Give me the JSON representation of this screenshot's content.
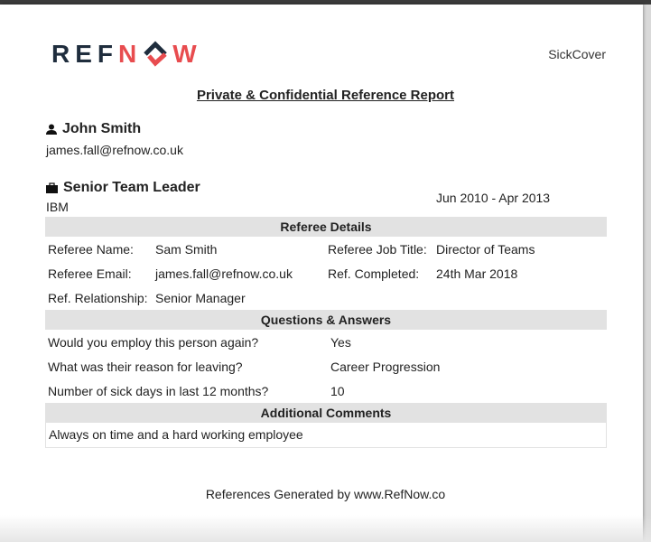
{
  "logo": {
    "text": "REFNOW",
    "colors": {
      "dark": "#1f2d3d",
      "red": "#e84c4f"
    }
  },
  "header": {
    "right_label": "SickCover",
    "title": "Private & Confidential Reference Report"
  },
  "candidate": {
    "name": "John Smith",
    "email": "james.fall@refnow.co.uk",
    "icon": "person-icon"
  },
  "position": {
    "title": "Senior Team Leader",
    "company": "IBM",
    "dates": "Jun 2010 - Apr 2013",
    "icon": "briefcase-icon"
  },
  "referee": {
    "heading": "Referee Details",
    "name_label": "Referee Name:",
    "name": "Sam Smith",
    "job_label": "Referee Job Title:",
    "job": "Director of Teams",
    "email_label": "Referee Email:",
    "email": "james.fall@refnow.co.uk",
    "completed_label": "Ref. Completed:",
    "completed": "24th Mar 2018",
    "relationship_label": "Ref. Relationship:",
    "relationship": "Senior Manager"
  },
  "qa": {
    "heading": "Questions & Answers",
    "items": [
      {
        "q": "Would you employ this person again?",
        "a": "Yes"
      },
      {
        "q": "What was their reason for leaving?",
        "a": "Career Progression"
      },
      {
        "q": "Number of sick days in last 12 months?",
        "a": "10"
      }
    ]
  },
  "comments": {
    "heading": "Additional Comments",
    "text": "Always on time and a hard working employee"
  },
  "footer": "References Generated by www.RefNow.co"
}
